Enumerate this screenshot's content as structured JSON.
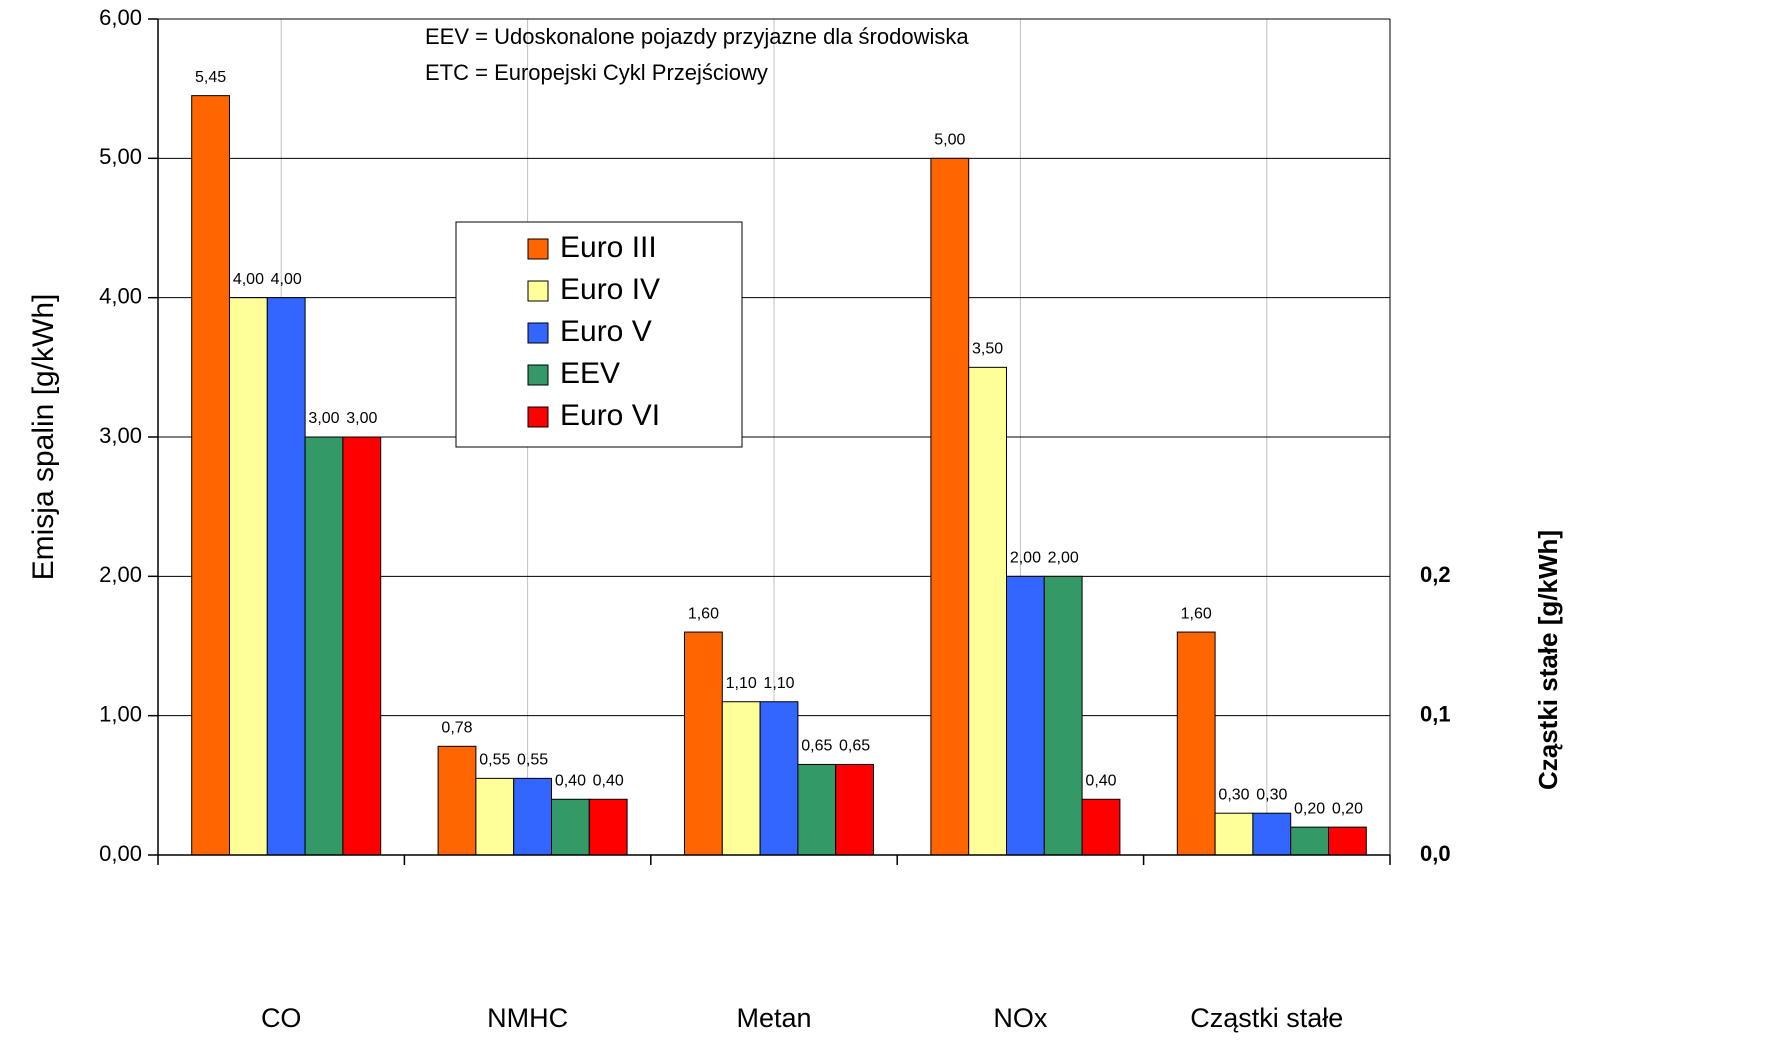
{
  "chart_data": {
    "type": "bar",
    "annotations": [
      "EEV = Udoskonalone pojazdy przyjazne dla środowiska",
      "ETC = Europejski Cykl Przejściowy"
    ],
    "y_label": "Emisja spalin [g/kWh]",
    "y2_label": "Cząstki stałe [g/kWh]",
    "categories": [
      "CO",
      "NMHC",
      "Metan",
      "NOx",
      "Cząstki stałe"
    ],
    "series": [
      {
        "name": "Euro III",
        "color": "#ff6600",
        "values": [
          5.45,
          0.78,
          1.6,
          5.0,
          1.6
        ],
        "value_labels": [
          "5,45",
          "0,78",
          "1,60",
          "5,00",
          "1,60"
        ]
      },
      {
        "name": "Euro IV",
        "color": "#ffff99",
        "values": [
          4.0,
          0.55,
          1.1,
          3.5,
          0.3
        ],
        "value_labels": [
          "4,00",
          "0,55",
          "1,10",
          "3,50",
          "0,30"
        ]
      },
      {
        "name": "Euro V",
        "color": "#3366ff",
        "values": [
          4.0,
          0.55,
          1.1,
          2.0,
          0.3
        ],
        "value_labels": [
          "4,00",
          "0,55",
          "1,10",
          "2,00",
          "0,30"
        ]
      },
      {
        "name": "EEV",
        "color": "#339966",
        "values": [
          3.0,
          0.4,
          0.65,
          2.0,
          0.2
        ],
        "value_labels": [
          "3,00",
          "0,40",
          "0,65",
          "2,00",
          "0,20"
        ]
      },
      {
        "name": "Euro VI",
        "color": "#ff0000",
        "values": [
          3.0,
          0.4,
          0.65,
          0.4,
          0.2
        ],
        "value_labels": [
          "3,00",
          "0,40",
          "0,65",
          "0,40",
          "0,20"
        ]
      }
    ],
    "ylim": [
      0,
      6
    ],
    "yticks": [
      {
        "value": 0,
        "label": "0,00"
      },
      {
        "value": 1,
        "label": "1,00"
      },
      {
        "value": 2,
        "label": "2,00"
      },
      {
        "value": 3,
        "label": "3,00"
      },
      {
        "value": 4,
        "label": "4,00"
      },
      {
        "value": 5,
        "label": "5,00"
      },
      {
        "value": 6,
        "label": "6,00"
      }
    ],
    "y2lim": [
      0,
      0.6
    ],
    "y2ticks": [
      {
        "value": 0,
        "label": "0,0"
      },
      {
        "value": 0.1,
        "label": "0,1"
      },
      {
        "value": 0.2,
        "label": "0,2"
      }
    ],
    "grid": true
  }
}
